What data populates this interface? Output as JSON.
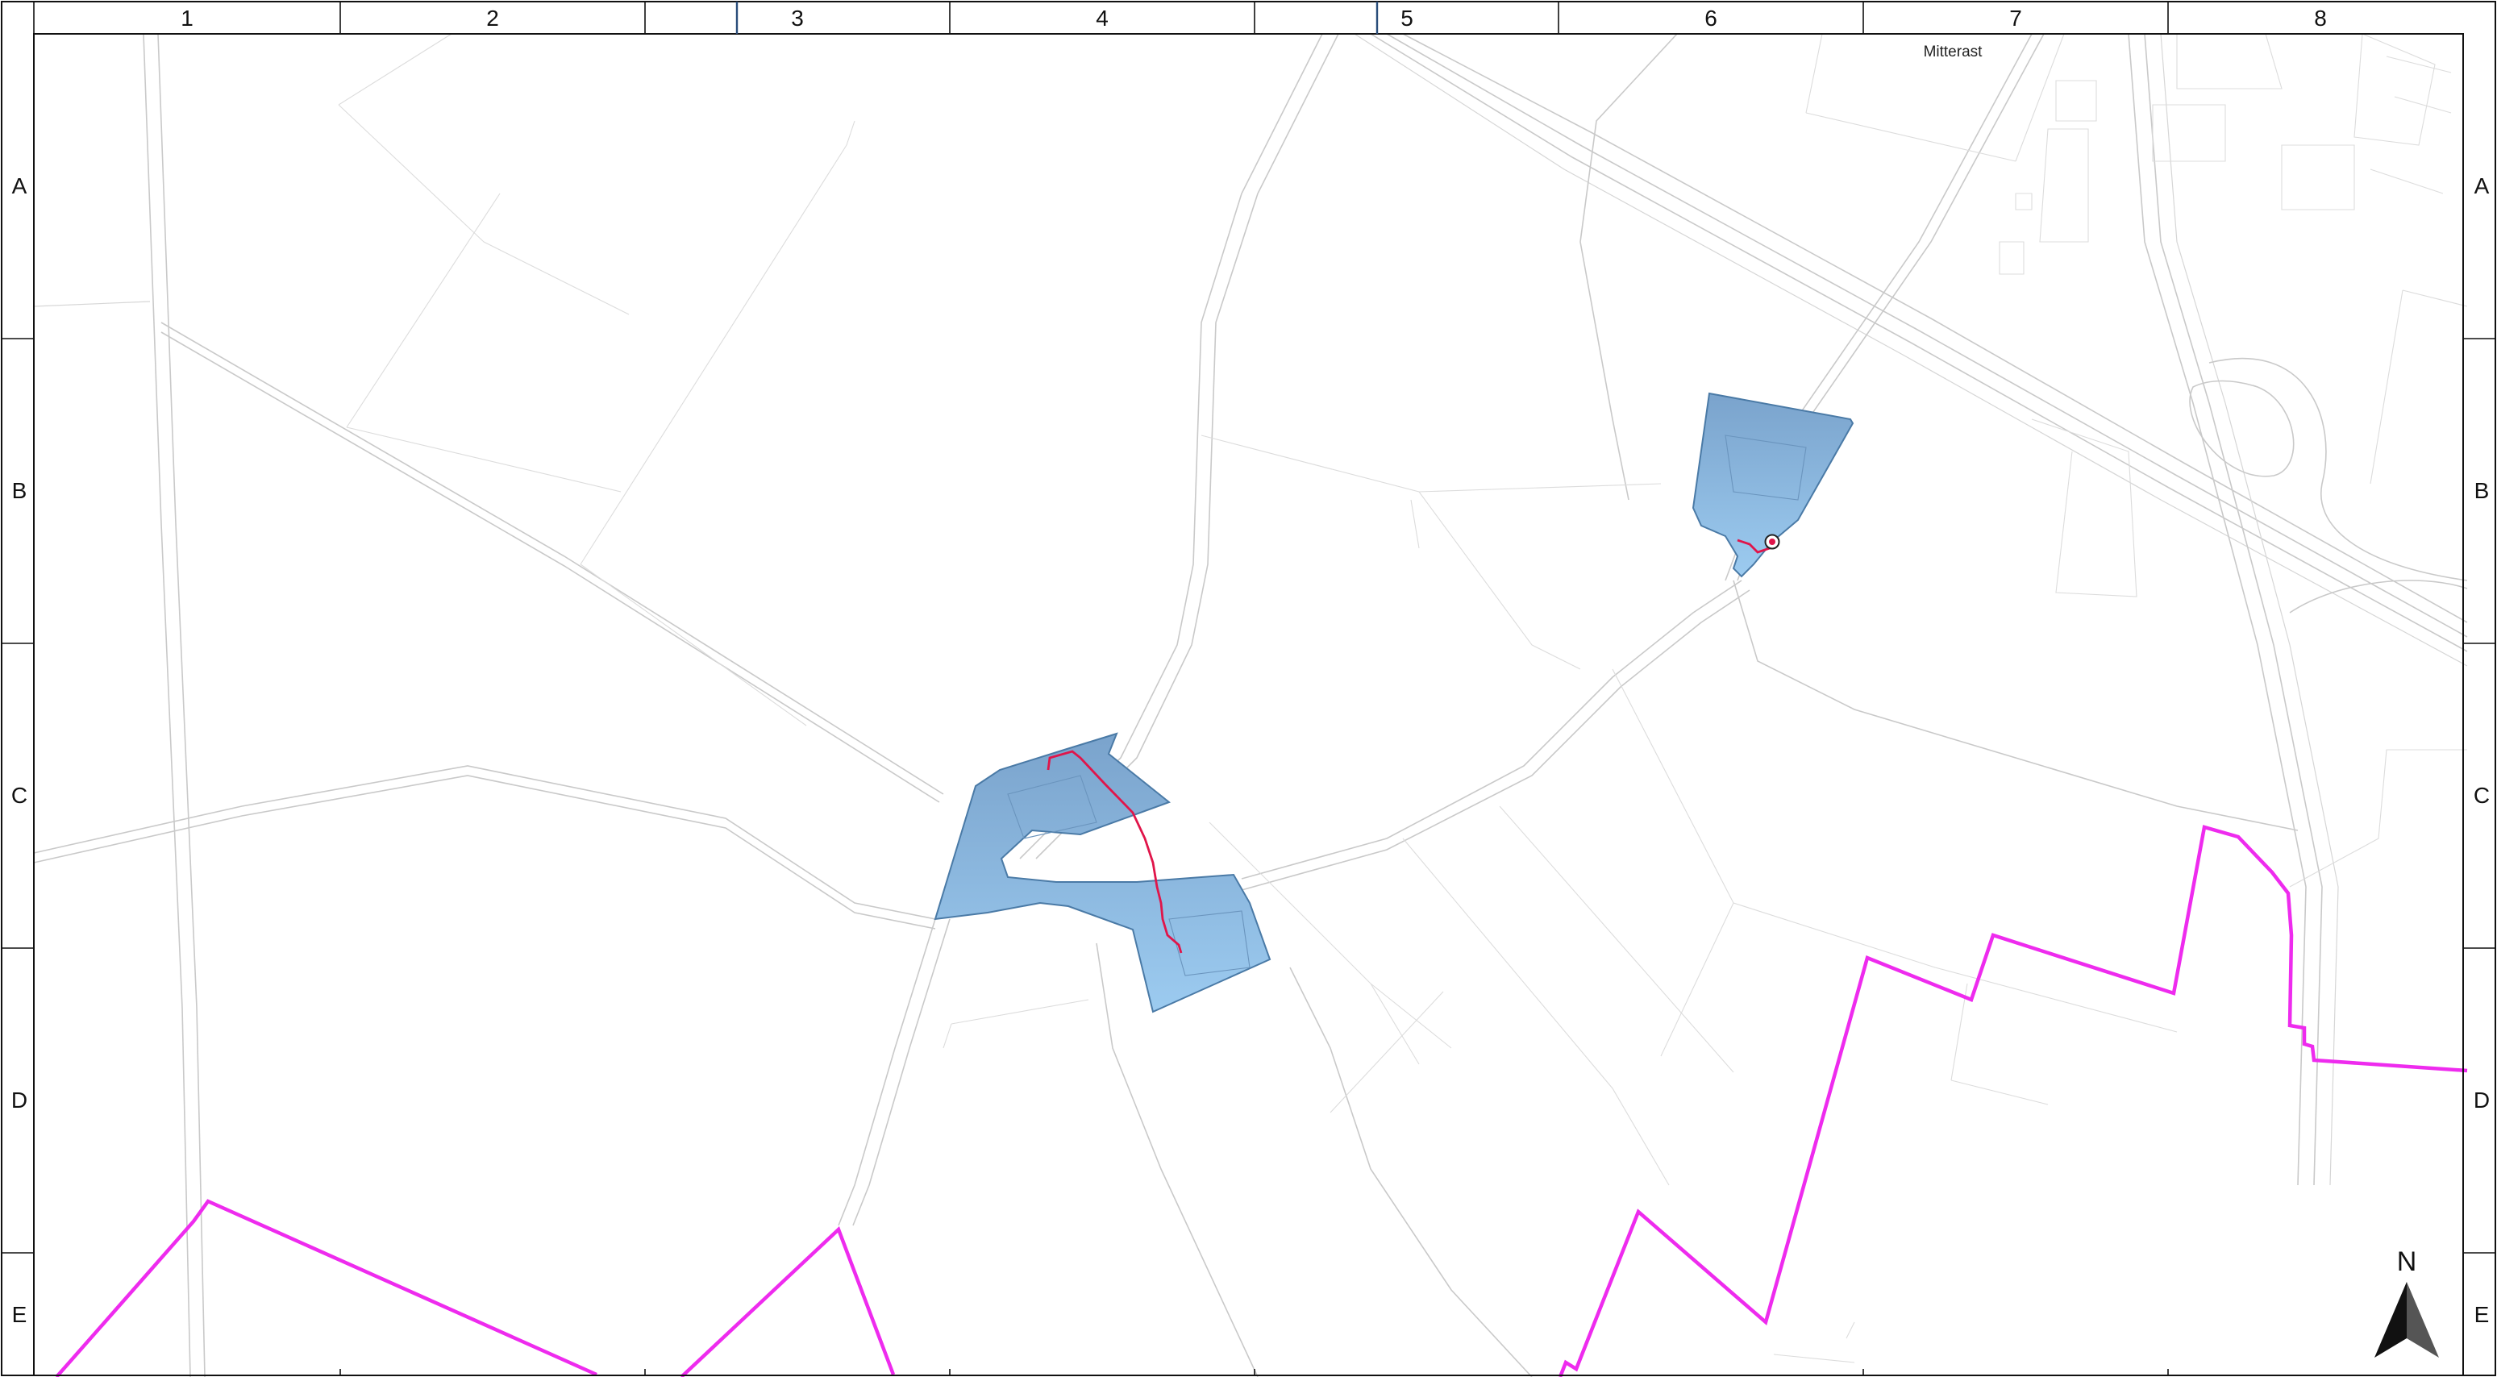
{
  "map": {
    "column_labels": [
      "1",
      "2",
      "3",
      "4",
      "5",
      "6",
      "7",
      "8"
    ],
    "row_labels": [
      "A",
      "B",
      "C",
      "D",
      "E"
    ],
    "place_labels": [
      {
        "name": "mitterast",
        "text": "Mitterast"
      }
    ],
    "north_arrow": {
      "label": "N",
      "icon": "north-arrow-icon"
    },
    "colors": {
      "boundary": "#ee2bee",
      "area_fill_top": "#7aa3cc",
      "area_fill_bottom": "#9ccbf0",
      "area_stroke": "#4a7aa6",
      "route": "#e0154a",
      "road": "#c9c9c9",
      "frame": "#111111"
    },
    "layers": [
      "roads",
      "parcels",
      "boundary",
      "project-areas",
      "route",
      "marker"
    ]
  }
}
